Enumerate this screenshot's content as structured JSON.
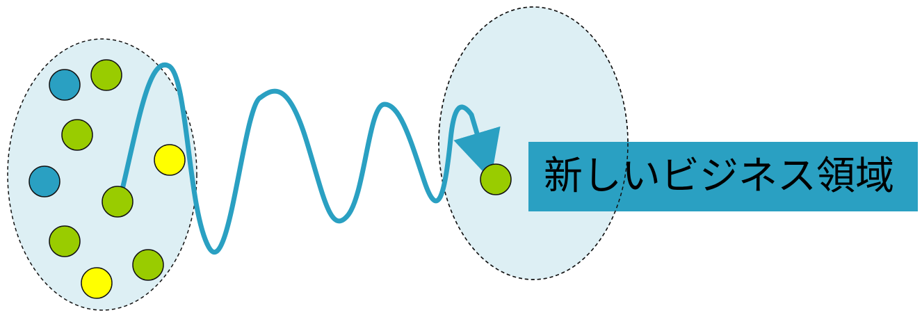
{
  "colors": {
    "group_fill": "#ddeff4",
    "group_border": "#111111",
    "path_stroke": "#2aa0c2",
    "label_bg": "#2aa0c2",
    "label_text": "#000000",
    "dot_blue": "#2aa0c2",
    "dot_green": "#99cc00",
    "dot_yellow": "#ffff00",
    "dot_outline": "#111111"
  },
  "current_group": {
    "dots": [
      {
        "color": "blue"
      },
      {
        "color": "green"
      },
      {
        "color": "green"
      },
      {
        "color": "yellow"
      },
      {
        "color": "blue"
      },
      {
        "color": "green"
      },
      {
        "color": "green"
      },
      {
        "color": "green"
      },
      {
        "color": "yellow"
      }
    ]
  },
  "target_group": {
    "dots": [
      {
        "color": "green"
      }
    ],
    "label": "新しいビジネス領域"
  }
}
